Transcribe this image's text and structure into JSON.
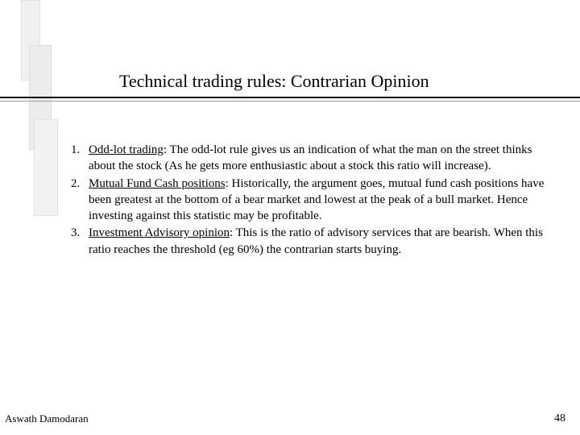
{
  "title": "Technical trading rules: Contrarian Opinion",
  "items": [
    {
      "num": "1.",
      "heading": "Odd-lot trading",
      "rest": ": The odd-lot rule gives us an indication of what the man on the street thinks about the stock (As he gets more enthusiastic about a stock this ratio will increase)."
    },
    {
      "num": "2.",
      "heading": "Mutual Fund Cash positions",
      "rest": ": Historically, the argument goes, mutual fund cash positions have been greatest at the bottom of a bear market and lowest at the peak of a bull market. Hence investing against this statistic may be profitable."
    },
    {
      "num": "3.",
      "heading": "Investment Advisory opinion",
      "rest": ": This is the ratio of advisory services that are bearish. When this ratio reaches the threshold (eg 60%) the contrarian starts buying."
    }
  ],
  "footer_author": "Aswath Damodaran",
  "page_number": "48",
  "colors": {
    "background": "#ffffff",
    "text": "#000000",
    "decor_light": "#f0f0f0",
    "rule_main": "#000000",
    "rule_sub": "#999999"
  }
}
